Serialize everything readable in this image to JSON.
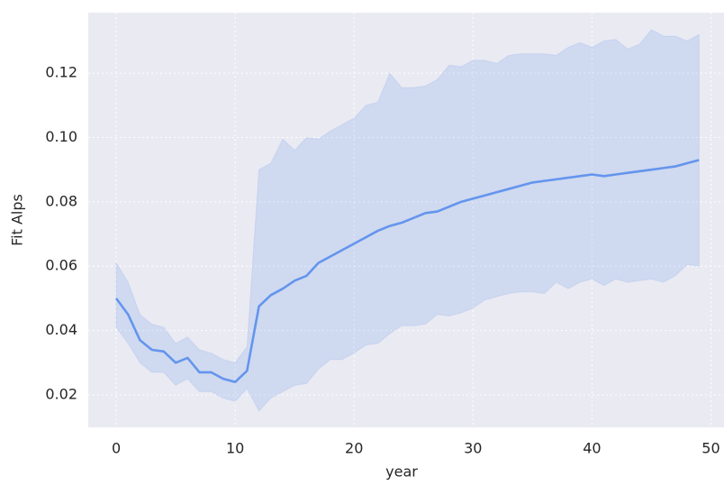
{
  "chart_data": {
    "type": "line",
    "x_label": "year",
    "y_label": "Fit Alps",
    "color": "#6495ed",
    "grid": true,
    "xlim": [
      -2.35,
      51.1
    ],
    "ylim": [
      0.0099,
      0.1388
    ],
    "xticks": [
      0,
      10,
      20,
      30,
      40,
      50
    ],
    "yticks": [
      0.02,
      0.04,
      0.06,
      0.08,
      {
        "value": 0.1,
        "label": "0.10"
      },
      0.12
    ],
    "x": [
      0,
      1,
      2,
      3,
      4,
      5,
      6,
      7,
      8,
      9,
      10,
      11,
      12,
      13,
      14,
      15,
      16,
      17,
      18,
      19,
      20,
      21,
      22,
      23,
      24,
      25,
      26,
      27,
      28,
      29,
      30,
      31,
      32,
      33,
      34,
      35,
      36,
      37,
      38,
      39,
      40,
      41,
      42,
      43,
      44,
      45,
      46,
      47,
      48,
      49
    ],
    "values": [
      0.05,
      0.045,
      0.037,
      0.034,
      0.0335,
      0.03,
      0.0315,
      0.027,
      0.027,
      0.025,
      0.024,
      0.0275,
      0.0475,
      0.051,
      0.053,
      0.0555,
      0.057,
      0.061,
      0.063,
      0.065,
      0.067,
      0.069,
      0.071,
      0.0725,
      0.0735,
      0.075,
      0.0765,
      0.077,
      0.0785,
      0.08,
      0.081,
      0.082,
      0.083,
      0.084,
      0.085,
      0.086,
      0.0865,
      0.087,
      0.0875,
      0.088,
      0.0885,
      0.088,
      0.0885,
      0.089,
      0.0895,
      0.09,
      0.0905,
      0.091,
      0.092,
      0.093
    ],
    "upper": [
      0.061,
      0.055,
      0.045,
      0.042,
      0.041,
      0.036,
      0.038,
      0.034,
      0.033,
      0.031,
      0.03,
      0.035,
      0.09,
      0.092,
      0.0995,
      0.096,
      0.1,
      0.0995,
      0.102,
      0.104,
      0.106,
      0.11,
      0.111,
      0.12,
      0.1155,
      0.1155,
      0.116,
      0.118,
      0.1225,
      0.122,
      0.124,
      0.124,
      0.123,
      0.1255,
      0.126,
      0.126,
      0.126,
      0.1255,
      0.128,
      0.1295,
      0.128,
      0.13,
      0.1305,
      0.1275,
      0.129,
      0.1335,
      0.1315,
      0.1315,
      0.13,
      0.132
    ],
    "lower": [
      0.041,
      0.036,
      0.03,
      0.027,
      0.027,
      0.023,
      0.025,
      0.021,
      0.021,
      0.019,
      0.018,
      0.022,
      0.015,
      0.019,
      0.021,
      0.023,
      0.0235,
      0.028,
      0.031,
      0.031,
      0.033,
      0.0355,
      0.036,
      0.039,
      0.0415,
      0.0415,
      0.042,
      0.045,
      0.0445,
      0.0455,
      0.047,
      0.0495,
      0.0505,
      0.0515,
      0.052,
      0.052,
      0.0515,
      0.055,
      0.053,
      0.055,
      0.056,
      0.054,
      0.056,
      0.055,
      0.0555,
      0.056,
      0.055,
      0.057,
      0.0605,
      0.06
    ]
  }
}
